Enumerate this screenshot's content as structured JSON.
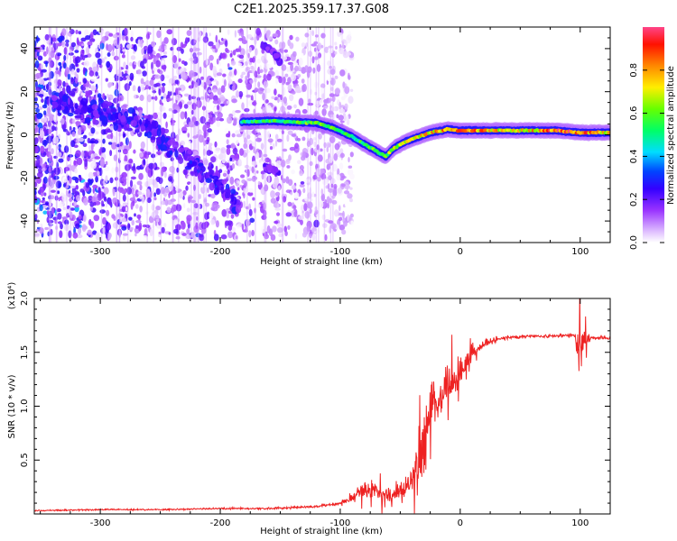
{
  "chart_data": [
    {
      "type": "heatmap",
      "title": "C2E1.2025.359.17.37.G08",
      "xlabel": "Height of straight line (km)",
      "ylabel": "Frequency (Hz)",
      "xlim": [
        -355,
        125
      ],
      "ylim": [
        -50,
        50
      ],
      "xticks": [
        -300,
        -200,
        -100,
        0,
        100
      ],
      "yticks": [
        -40,
        -20,
        0,
        20,
        40
      ],
      "colorbar": {
        "label": "Normalized spectral amplitude",
        "range": [
          0.0,
          1.0
        ],
        "ticks": [
          0.0,
          0.2,
          0.4,
          0.6,
          0.8
        ],
        "colors": [
          "#ffffff",
          "#cc88ff",
          "#8800ff",
          "#0000ff",
          "#00ffff",
          "#00ff00",
          "#ffff00",
          "#ff8800",
          "#ff0000",
          "#ff4488"
        ]
      },
      "noise_region_km": [
        -355,
        -100
      ],
      "noise_band_hz": [
        -48,
        48
      ],
      "descending_branch": [
        {
          "x": -340,
          "y": 16
        },
        {
          "x": -300,
          "y": 10
        },
        {
          "x": -260,
          "y": 4
        },
        {
          "x": -230,
          "y": -10
        },
        {
          "x": -200,
          "y": -22
        },
        {
          "x": -185,
          "y": -34
        }
      ],
      "upper_echo": [
        {
          "x": -165,
          "y": 42
        },
        {
          "x": -155,
          "y": 38
        },
        {
          "x": -150,
          "y": 34
        }
      ],
      "lower_echo": [
        {
          "x": -165,
          "y": -14
        },
        {
          "x": -158,
          "y": -16
        },
        {
          "x": -150,
          "y": -18
        }
      ],
      "ridge": [
        {
          "x": -182,
          "y": 6.0
        },
        {
          "x": -160,
          "y": 6.5
        },
        {
          "x": -140,
          "y": 6.0
        },
        {
          "x": -120,
          "y": 5.5
        },
        {
          "x": -105,
          "y": 3.0
        },
        {
          "x": -90,
          "y": -1.0
        },
        {
          "x": -75,
          "y": -6.0
        },
        {
          "x": -62,
          "y": -10.0
        },
        {
          "x": -55,
          "y": -6.0
        },
        {
          "x": -45,
          "y": -3.0
        },
        {
          "x": -35,
          "y": -1.0
        },
        {
          "x": -25,
          "y": 1.0
        },
        {
          "x": -10,
          "y": 2.5
        },
        {
          "x": 0,
          "y": 2.0
        },
        {
          "x": 20,
          "y": 2.0
        },
        {
          "x": 50,
          "y": 2.0
        },
        {
          "x": 80,
          "y": 2.0
        },
        {
          "x": 100,
          "y": 1.0
        },
        {
          "x": 125,
          "y": 1.0
        }
      ],
      "ridge_amplitude": [
        {
          "x": -182,
          "a": 0.5
        },
        {
          "x": -130,
          "a": 0.6
        },
        {
          "x": -80,
          "a": 0.55
        },
        {
          "x": -40,
          "a": 0.7
        },
        {
          "x": 0,
          "a": 0.85
        },
        {
          "x": 50,
          "a": 0.7
        },
        {
          "x": 90,
          "a": 0.95
        },
        {
          "x": 125,
          "a": 0.7
        }
      ]
    },
    {
      "type": "line",
      "xlabel": "Height of straight line (km)",
      "ylabel": "SNR (10 * v/v)",
      "yscale_label": "(x10⁴)",
      "xlim": [
        -355,
        125
      ],
      "ylim": [
        0,
        2.0
      ],
      "xticks": [
        -300,
        -200,
        -100,
        0,
        100
      ],
      "yticks": [
        0.5,
        1.0,
        1.5,
        2.0
      ],
      "color": "#ee2222",
      "series": [
        {
          "name": "SNR",
          "x": [
            -355,
            -300,
            -250,
            -200,
            -160,
            -120,
            -100,
            -90,
            -80,
            -70,
            -60,
            -50,
            -40,
            -35,
            -30,
            -25,
            -20,
            -15,
            -10,
            -5,
            0,
            5,
            10,
            20,
            30,
            40,
            60,
            80,
            95,
            100,
            105,
            110,
            125
          ],
          "y": [
            0.03,
            0.04,
            0.04,
            0.05,
            0.05,
            0.07,
            0.1,
            0.15,
            0.25,
            0.22,
            0.18,
            0.2,
            0.3,
            0.45,
            0.75,
            0.95,
            1.05,
            1.1,
            1.2,
            1.25,
            1.3,
            1.4,
            1.5,
            1.58,
            1.62,
            1.64,
            1.65,
            1.65,
            1.66,
            1.55,
            1.62,
            1.64,
            1.63
          ],
          "noise": [
            0.005,
            0.006,
            0.006,
            0.007,
            0.008,
            0.01,
            0.015,
            0.04,
            0.08,
            0.08,
            0.06,
            0.08,
            0.12,
            0.2,
            0.28,
            0.25,
            0.2,
            0.2,
            0.18,
            0.15,
            0.12,
            0.08,
            0.06,
            0.04,
            0.02,
            0.015,
            0.012,
            0.012,
            0.02,
            0.25,
            0.06,
            0.015,
            0.015
          ]
        }
      ]
    }
  ]
}
